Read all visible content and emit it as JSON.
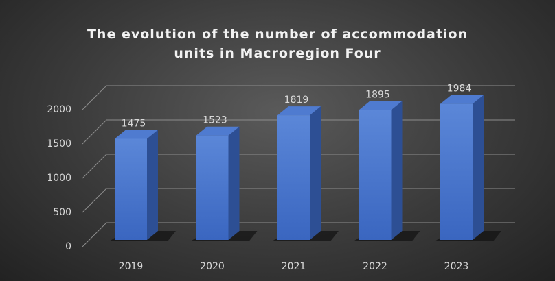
{
  "chart_data": {
    "type": "bar3d",
    "title": "The evolution of the number of accommodation units in Macroregion Four",
    "categories": [
      "2019",
      "2020",
      "2021",
      "2022",
      "2023"
    ],
    "values": [
      1475,
      1523,
      1819,
      1895,
      1984
    ],
    "color": "#4472c4",
    "ylim": [
      0,
      2000
    ],
    "yticks": [
      0,
      500,
      1000,
      1500,
      2000
    ],
    "grid": true
  }
}
